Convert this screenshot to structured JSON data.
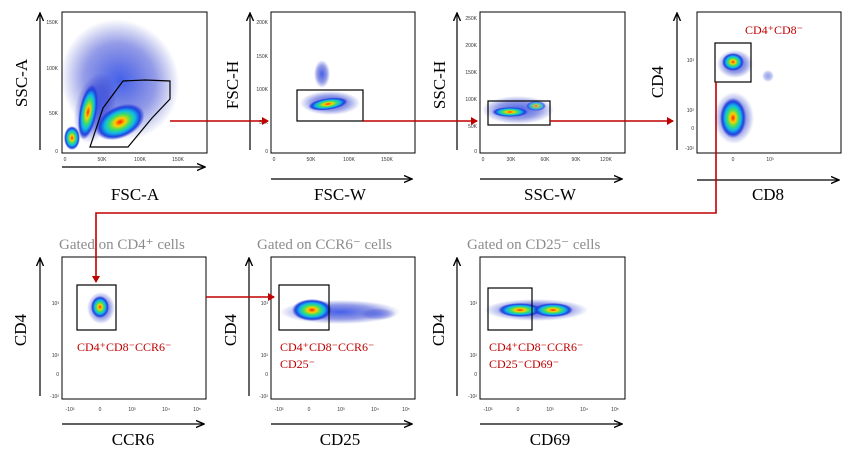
{
  "colors": {
    "arrow": "#c00000",
    "gate_label": "#c00000",
    "gated_on": "#8c8c8c",
    "axis": "#000000"
  },
  "plots": [
    {
      "id": "p1",
      "xlabel": "FSC-A",
      "ylabel": "SSC-A",
      "xticks": [
        "0",
        "50K",
        "100K",
        "150K"
      ],
      "yticks": [
        "0",
        "50K",
        "100K",
        "150K"
      ],
      "gate_label": "",
      "gated_on": ""
    },
    {
      "id": "p2",
      "xlabel": "FSC-W",
      "ylabel": "FSC-H",
      "xticks": [
        "0",
        "50K",
        "100K",
        "150K"
      ],
      "yticks": [
        "0",
        "50K",
        "100K",
        "150K",
        "200K"
      ],
      "gate_label": "",
      "gated_on": ""
    },
    {
      "id": "p3",
      "xlabel": "SSC-W",
      "ylabel": "SSC-H",
      "xticks": [
        "0",
        "30K",
        "60K",
        "90K",
        "120K"
      ],
      "yticks": [
        "0",
        "50K",
        "100K",
        "150K",
        "200K",
        "250K"
      ],
      "gate_label": "",
      "gated_on": ""
    },
    {
      "id": "p4",
      "xlabel": "CD8",
      "ylabel": "CD4",
      "xticks": [
        "0",
        "10³"
      ],
      "yticks": [
        "-10²",
        "0",
        "10²",
        "10³"
      ],
      "gate_label": [
        "CD4⁺CD8⁻"
      ],
      "gated_on": ""
    },
    {
      "id": "p5",
      "xlabel": "CCR6",
      "ylabel": "CD4",
      "xticks": [
        "-10³",
        "0",
        "10³",
        "10⁴",
        "10⁵"
      ],
      "yticks": [
        "-10²",
        "0",
        "10²",
        "10³"
      ],
      "gate_label": [
        "CD4⁺CD8⁻CCR6⁻"
      ],
      "gated_on": "Gated on CD4⁺ cells"
    },
    {
      "id": "p6",
      "xlabel": "CD25",
      "ylabel": "CD4",
      "xticks": [
        "-10³",
        "0",
        "10³",
        "10⁴",
        "10⁵"
      ],
      "yticks": [
        "-10²",
        "0",
        "10²",
        "10³"
      ],
      "gate_label": [
        "CD4⁺CD8⁻CCR6⁻",
        "CD25⁻"
      ],
      "gated_on": "Gated on CCR6⁻ cells"
    },
    {
      "id": "p7",
      "xlabel": "CD69",
      "ylabel": "CD4",
      "xticks": [
        "-10³",
        "0",
        "10³",
        "10⁴",
        "10⁵"
      ],
      "yticks": [
        "-10²",
        "0",
        "10²",
        "10³"
      ],
      "gate_label": [
        "CD4⁺CD8⁻CCR6⁻",
        "CD25⁻CD69⁻"
      ],
      "gated_on": "Gated on CD25⁻ cells"
    }
  ]
}
